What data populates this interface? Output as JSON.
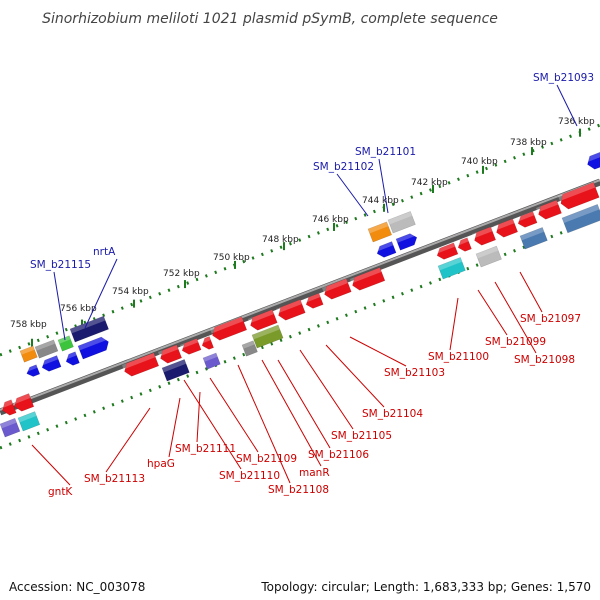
{
  "title": "Sinorhizobium meliloti 1021 plasmid pSymB, complete sequence",
  "accession": "Accession: NC_003078",
  "topology": "Topology: circular; Length: 1,683,333 bp; Genes: 1,570",
  "colors": {
    "backbone": "#888888",
    "forward_red": "#e8131a",
    "reverse_red": "#e8131a",
    "blue": "#1010e0",
    "navy": "#1a1a6e",
    "orange": "#f28c0f",
    "green": "#3cc43c",
    "olive": "#7a9a2a",
    "gray": "#888888",
    "lightgray": "#bbbbbb",
    "cyan": "#20c4c8",
    "steelblue": "#4a7ab0",
    "purple": "#6a5acd",
    "tick_green": "#1e7a1e",
    "label_red": "#cc0000",
    "label_blue": "#1a1aaa"
  },
  "scale_ticks": [
    "758 kbp",
    "756 kbp",
    "754 kbp",
    "752 kbp",
    "750 kbp",
    "748 kbp",
    "746 kbp",
    "744 kbp",
    "742 kbp",
    "740 kbp",
    "738 kbp",
    "736 kbp"
  ],
  "forward_strand_labels": [
    "SM_b21093",
    "SM_b21101",
    "SM_b21102",
    "nrtA",
    "SM_b21115"
  ],
  "reverse_strand_labels": [
    "SM_b21097",
    "SM_b21098",
    "SM_b21099",
    "SM_b21100",
    "SM_b21103",
    "SM_b21104",
    "SM_b21105",
    "SM_b21106",
    "manR",
    "SM_b21108",
    "SM_b21109",
    "SM_b21110",
    "SM_b21111",
    "hpaG",
    "SM_b21113",
    "gntK"
  ]
}
